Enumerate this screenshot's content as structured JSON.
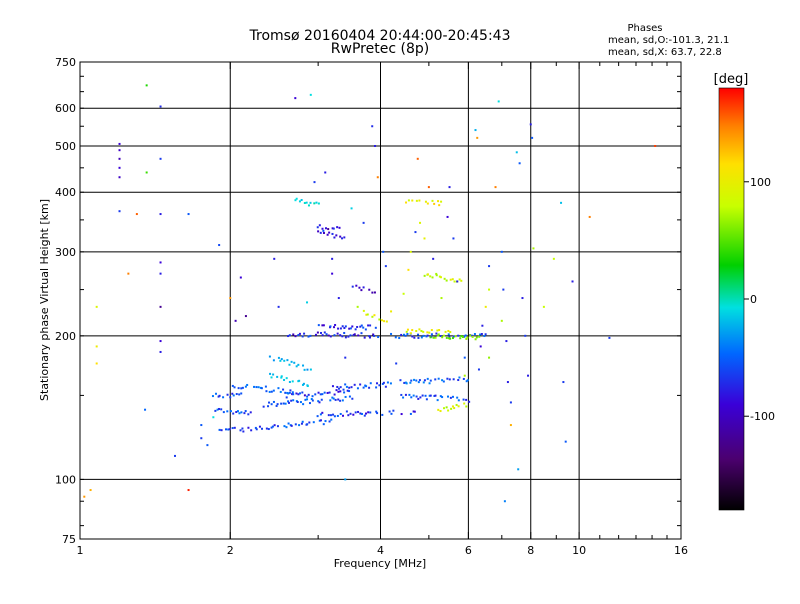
{
  "chart_data": {
    "type": "scatter",
    "title": "Tromsø 20160404 20:44:00-20:45:43",
    "subtitle": "RwPretec (8p)",
    "xlabel": "Frequency [MHz]",
    "ylabel": "Stationary phase Virtual Height [km]",
    "xscale": "log",
    "yscale": "log",
    "xlim": [
      1,
      16
    ],
    "ylim": [
      75,
      750
    ],
    "xticks": [
      1,
      2,
      4,
      6,
      8,
      10,
      16
    ],
    "yticks": [
      75,
      100,
      200,
      300,
      400,
      500,
      600,
      750
    ],
    "grid_x": [
      2,
      4,
      6,
      8,
      10
    ],
    "grid_y": [
      100,
      200,
      300,
      400,
      500,
      600
    ],
    "legend": {
      "heading": "Phases",
      "line1": "mean, sd,O:-101.3, 21.1",
      "line2": "mean, sd,X:  63.7, 22.8"
    },
    "colorbar": {
      "label": "[deg]",
      "range": [
        -180,
        180
      ],
      "ticks": [
        100,
        0,
        -100
      ],
      "tick_labels": [
        "100",
        "0",
        "-100"
      ]
    },
    "traces": [
      {
        "f": [
          1.85,
          2.1
        ],
        "h": [
          150,
          150
        ],
        "phase": -105
      },
      {
        "f": [
          1.85,
          2.2
        ],
        "h": [
          140,
          138
        ],
        "phase": -100
      },
      {
        "f": [
          1.9,
          2.2
        ],
        "h": [
          128,
          127
        ],
        "phase": -110
      },
      {
        "f": [
          2.0,
          2.7
        ],
        "h": [
          158,
          152
        ],
        "phase": -95
      },
      {
        "f": [
          2.2,
          3.2
        ],
        "h": [
          128,
          132
        ],
        "phase": -105
      },
      {
        "f": [
          2.3,
          3.5
        ],
        "h": [
          143,
          148
        ],
        "phase": -100
      },
      {
        "f": [
          2.6,
          3.5
        ],
        "h": [
          150,
          153
        ],
        "phase": -115
      },
      {
        "f": [
          3.0,
          4.7
        ],
        "h": [
          137,
          138
        ],
        "phase": -110
      },
      {
        "f": [
          3.2,
          4.2
        ],
        "h": [
          156,
          158
        ],
        "phase": -105
      },
      {
        "f": [
          2.6,
          3.9
        ],
        "h": [
          202,
          200
        ],
        "phase": -120
      },
      {
        "f": [
          3.0,
          3.9
        ],
        "h": [
          210,
          208
        ],
        "phase": -115
      },
      {
        "f": [
          3.9,
          6.5
        ],
        "h": [
          200,
          200
        ],
        "phase": -100
      },
      {
        "f": [
          4.5,
          5.5
        ],
        "h": [
          205,
          203
        ],
        "phase": 80
      },
      {
        "f": [
          5.0,
          6.3
        ],
        "h": [
          200,
          198
        ],
        "phase": 40
      },
      {
        "f": [
          4.4,
          6.0
        ],
        "h": [
          150,
          147
        ],
        "phase": -100
      },
      {
        "f": [
          4.4,
          6.0
        ],
        "h": [
          160,
          162
        ],
        "phase": -95
      },
      {
        "f": [
          5.2,
          6.0
        ],
        "h": [
          140,
          143
        ],
        "phase": 70
      },
      {
        "f": [
          3.0,
          3.4
        ],
        "h": [
          330,
          320
        ],
        "phase": -120
      },
      {
        "f": [
          3.0,
          3.3
        ],
        "h": [
          340,
          335
        ],
        "phase": -130
      },
      {
        "f": [
          2.7,
          3.0
        ],
        "h": [
          385,
          375
        ],
        "phase": -30
      },
      {
        "f": [
          4.5,
          5.3
        ],
        "h": [
          385,
          380
        ],
        "phase": 90
      },
      {
        "f": [
          4.9,
          5.8
        ],
        "h": [
          270,
          260
        ],
        "phase": 75
      },
      {
        "f": [
          3.5,
          3.9
        ],
        "h": [
          255,
          248
        ],
        "phase": -125
      },
      {
        "f": [
          3.7,
          4.1
        ],
        "h": [
          225,
          215
        ],
        "phase": 80
      },
      {
        "f": [
          2.4,
          2.9
        ],
        "h": [
          180,
          170
        ],
        "phase": -55
      },
      {
        "f": [
          2.4,
          2.9
        ],
        "h": [
          165,
          158
        ],
        "phase": -40
      }
    ],
    "points": [
      {
        "f": 1.2,
        "h": 505,
        "phase": -130
      },
      {
        "f": 1.2,
        "h": 490,
        "phase": -135
      },
      {
        "f": 1.2,
        "h": 470,
        "phase": -140
      },
      {
        "f": 1.2,
        "h": 450,
        "phase": -130
      },
      {
        "f": 1.2,
        "h": 430,
        "phase": -135
      },
      {
        "f": 1.2,
        "h": 365,
        "phase": -110
      },
      {
        "f": 1.25,
        "h": 270,
        "phase": 140
      },
      {
        "f": 1.3,
        "h": 360,
        "phase": 150
      },
      {
        "f": 1.36,
        "h": 670,
        "phase": 10
      },
      {
        "f": 1.36,
        "h": 440,
        "phase": 20
      },
      {
        "f": 1.45,
        "h": 605,
        "phase": -115
      },
      {
        "f": 1.45,
        "h": 470,
        "phase": -110
      },
      {
        "f": 1.45,
        "h": 360,
        "phase": -120
      },
      {
        "f": 1.45,
        "h": 285,
        "phase": -130
      },
      {
        "f": 1.45,
        "h": 270,
        "phase": -120
      },
      {
        "f": 1.45,
        "h": 230,
        "phase": -150
      },
      {
        "f": 1.45,
        "h": 195,
        "phase": -130
      },
      {
        "f": 1.45,
        "h": 185,
        "phase": -120
      },
      {
        "f": 1.35,
        "h": 140,
        "phase": -95
      },
      {
        "f": 1.55,
        "h": 112,
        "phase": -110
      },
      {
        "f": 1.65,
        "h": 360,
        "phase": -100
      },
      {
        "f": 1.65,
        "h": 95,
        "phase": 170
      },
      {
        "f": 1.08,
        "h": 230,
        "phase": 80
      },
      {
        "f": 1.08,
        "h": 190,
        "phase": 90
      },
      {
        "f": 1.08,
        "h": 175,
        "phase": 100
      },
      {
        "f": 1.05,
        "h": 95,
        "phase": 120
      },
      {
        "f": 1.02,
        "h": 92,
        "phase": 130
      },
      {
        "f": 1.75,
        "h": 130,
        "phase": -100
      },
      {
        "f": 1.75,
        "h": 122,
        "phase": -110
      },
      {
        "f": 1.8,
        "h": 118,
        "phase": -100
      },
      {
        "f": 1.85,
        "h": 135,
        "phase": -20
      },
      {
        "f": 1.9,
        "h": 310,
        "phase": -105
      },
      {
        "f": 2.0,
        "h": 240,
        "phase": 130
      },
      {
        "f": 2.05,
        "h": 215,
        "phase": -140
      },
      {
        "f": 2.1,
        "h": 265,
        "phase": -130
      },
      {
        "f": 2.15,
        "h": 220,
        "phase": -150
      },
      {
        "f": 2.45,
        "h": 290,
        "phase": -120
      },
      {
        "f": 2.5,
        "h": 230,
        "phase": -115
      },
      {
        "f": 2.7,
        "h": 630,
        "phase": -130
      },
      {
        "f": 2.9,
        "h": 640,
        "phase": -20
      },
      {
        "f": 2.95,
        "h": 420,
        "phase": -110
      },
      {
        "f": 3.1,
        "h": 440,
        "phase": -120
      },
      {
        "f": 3.2,
        "h": 290,
        "phase": -120
      },
      {
        "f": 3.2,
        "h": 270,
        "phase": -130
      },
      {
        "f": 3.4,
        "h": 180,
        "phase": -115
      },
      {
        "f": 3.4,
        "h": 100,
        "phase": -60
      },
      {
        "f": 3.5,
        "h": 370,
        "phase": -30
      },
      {
        "f": 3.7,
        "h": 345,
        "phase": -110
      },
      {
        "f": 3.85,
        "h": 550,
        "phase": -115
      },
      {
        "f": 3.9,
        "h": 500,
        "phase": -120
      },
      {
        "f": 3.95,
        "h": 430,
        "phase": 140
      },
      {
        "f": 4.05,
        "h": 300,
        "phase": -100
      },
      {
        "f": 4.1,
        "h": 280,
        "phase": -110
      },
      {
        "f": 4.3,
        "h": 175,
        "phase": -110
      },
      {
        "f": 4.6,
        "h": 300,
        "phase": 80
      },
      {
        "f": 4.7,
        "h": 330,
        "phase": -110
      },
      {
        "f": 4.75,
        "h": 470,
        "phase": 150
      },
      {
        "f": 4.9,
        "h": 320,
        "phase": 85
      },
      {
        "f": 5.0,
        "h": 410,
        "phase": 150
      },
      {
        "f": 5.1,
        "h": 290,
        "phase": -120
      },
      {
        "f": 5.3,
        "h": 240,
        "phase": 60
      },
      {
        "f": 5.5,
        "h": 410,
        "phase": -120
      },
      {
        "f": 5.6,
        "h": 320,
        "phase": -110
      },
      {
        "f": 5.7,
        "h": 260,
        "phase": -120
      },
      {
        "f": 5.9,
        "h": 180,
        "phase": -100
      },
      {
        "f": 5.9,
        "h": 165,
        "phase": 60
      },
      {
        "f": 6.2,
        "h": 540,
        "phase": -50
      },
      {
        "f": 6.25,
        "h": 520,
        "phase": 130
      },
      {
        "f": 6.3,
        "h": 170,
        "phase": -110
      },
      {
        "f": 6.5,
        "h": 230,
        "phase": 90
      },
      {
        "f": 6.6,
        "h": 180,
        "phase": 50
      },
      {
        "f": 6.8,
        "h": 410,
        "phase": 140
      },
      {
        "f": 6.9,
        "h": 620,
        "phase": -20
      },
      {
        "f": 7.0,
        "h": 300,
        "phase": -100
      },
      {
        "f": 7.05,
        "h": 250,
        "phase": -110
      },
      {
        "f": 7.2,
        "h": 160,
        "phase": -120
      },
      {
        "f": 7.3,
        "h": 145,
        "phase": -110
      },
      {
        "f": 7.3,
        "h": 130,
        "phase": 120
      },
      {
        "f": 7.1,
        "h": 90,
        "phase": -80
      },
      {
        "f": 7.5,
        "h": 485,
        "phase": -40
      },
      {
        "f": 7.6,
        "h": 460,
        "phase": -100
      },
      {
        "f": 7.55,
        "h": 105,
        "phase": -60
      },
      {
        "f": 7.7,
        "h": 240,
        "phase": -120
      },
      {
        "f": 7.8,
        "h": 200,
        "phase": -110
      },
      {
        "f": 7.9,
        "h": 165,
        "phase": -120
      },
      {
        "f": 8.0,
        "h": 555,
        "phase": -120
      },
      {
        "f": 8.05,
        "h": 520,
        "phase": -100
      },
      {
        "f": 8.1,
        "h": 305,
        "phase": 60
      },
      {
        "f": 8.5,
        "h": 230,
        "phase": 70
      },
      {
        "f": 8.9,
        "h": 290,
        "phase": 70
      },
      {
        "f": 9.2,
        "h": 380,
        "phase": -40
      },
      {
        "f": 9.3,
        "h": 160,
        "phase": -110
      },
      {
        "f": 9.4,
        "h": 120,
        "phase": -100
      },
      {
        "f": 9.7,
        "h": 260,
        "phase": -120
      },
      {
        "f": 10.5,
        "h": 355,
        "phase": 140
      },
      {
        "f": 11.5,
        "h": 198,
        "phase": -110
      },
      {
        "f": 14.2,
        "h": 500,
        "phase": 160
      },
      {
        "f": 6.6,
        "h": 280,
        "phase": -110
      },
      {
        "f": 6.6,
        "h": 250,
        "phase": 70
      },
      {
        "f": 6.4,
        "h": 210,
        "phase": -120
      },
      {
        "f": 6.35,
        "h": 190,
        "phase": -130
      },
      {
        "f": 7.0,
        "h": 215,
        "phase": 60
      },
      {
        "f": 7.15,
        "h": 195,
        "phase": -120
      },
      {
        "f": 5.45,
        "h": 355,
        "phase": -130
      },
      {
        "f": 4.8,
        "h": 345,
        "phase": 80
      },
      {
        "f": 4.55,
        "h": 275,
        "phase": 100
      },
      {
        "f": 4.45,
        "h": 245,
        "phase": 70
      },
      {
        "f": 4.2,
        "h": 225,
        "phase": 90
      },
      {
        "f": 3.6,
        "h": 230,
        "phase": 60
      },
      {
        "f": 3.3,
        "h": 240,
        "phase": -120
      },
      {
        "f": 2.85,
        "h": 235,
        "phase": -30
      }
    ]
  }
}
